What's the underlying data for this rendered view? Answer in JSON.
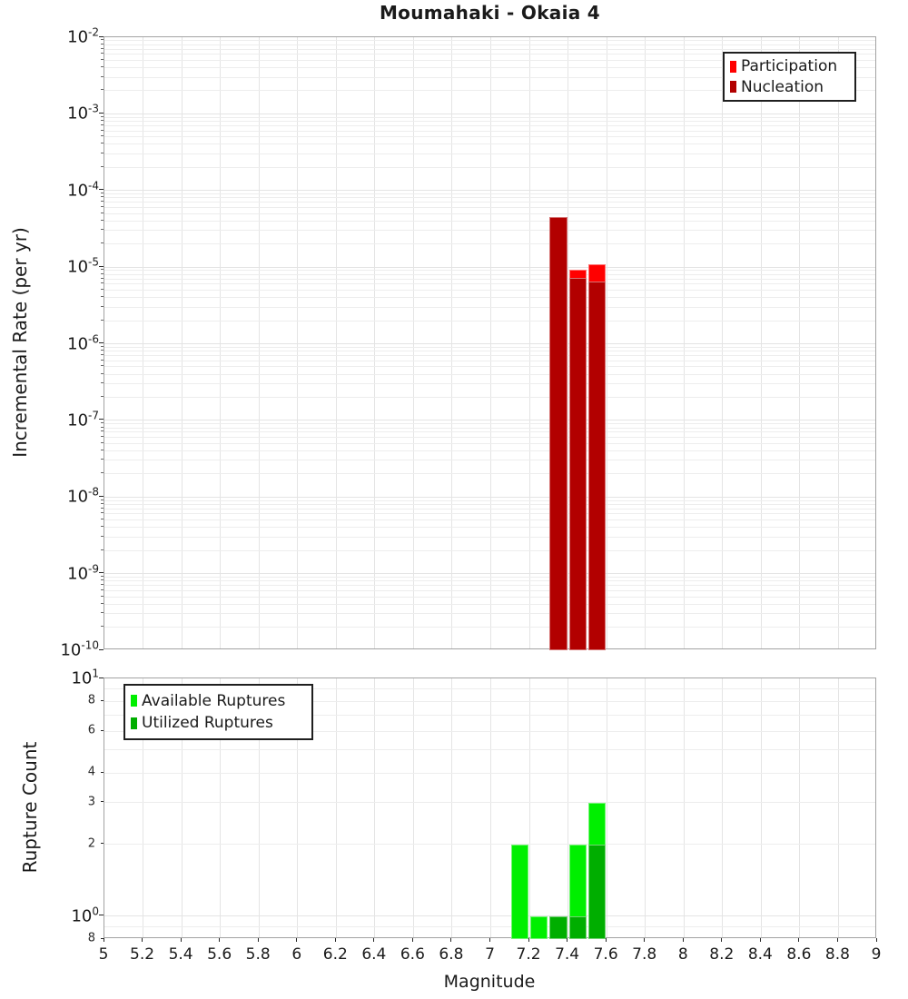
{
  "title": "Moumahaki - Okaia 4",
  "axes": {
    "xlabel": "Magnitude",
    "ylabel_top": "Incremental Rate (per yr)",
    "ylabel_bottom": "Rupture Count"
  },
  "colors": {
    "participation": "#ff0000",
    "nucleation": "#b20000",
    "available": "#00ef00",
    "utilized": "#00ae00",
    "grid_major": "#e4e4e4",
    "grid_minor": "#ededed",
    "spine": "#a3a3a3",
    "tick": "#262626"
  },
  "legend_top": {
    "items": [
      {
        "label": "Participation",
        "color": "#ff0000"
      },
      {
        "label": "Nucleation",
        "color": "#b20000"
      }
    ]
  },
  "legend_bottom": {
    "items": [
      {
        "label": "Available Ruptures",
        "color": "#00ef00"
      },
      {
        "label": "Utilized Ruptures",
        "color": "#00ae00"
      }
    ]
  },
  "x_ticks": [
    {
      "value": 5.0,
      "label": "5"
    },
    {
      "value": 5.2,
      "label": "5.2"
    },
    {
      "value": 5.4,
      "label": "5.4"
    },
    {
      "value": 5.6,
      "label": "5.6"
    },
    {
      "value": 5.8,
      "label": "5.8"
    },
    {
      "value": 6.0,
      "label": "6"
    },
    {
      "value": 6.2,
      "label": "6.2"
    },
    {
      "value": 6.4,
      "label": "6.4"
    },
    {
      "value": 6.6,
      "label": "6.6"
    },
    {
      "value": 6.8,
      "label": "6.8"
    },
    {
      "value": 7.0,
      "label": "7"
    },
    {
      "value": 7.2,
      "label": "7.2"
    },
    {
      "value": 7.4,
      "label": "7.4"
    },
    {
      "value": 7.6,
      "label": "7.6"
    },
    {
      "value": 7.8,
      "label": "7.8"
    },
    {
      "value": 8.0,
      "label": "8"
    },
    {
      "value": 8.2,
      "label": "8.2"
    },
    {
      "value": 8.4,
      "label": "8.4"
    },
    {
      "value": 8.6,
      "label": "8.6"
    },
    {
      "value": 8.8,
      "label": "8.8"
    },
    {
      "value": 9.0,
      "label": "9"
    }
  ],
  "y_ticks_top": [
    {
      "exp": "-2"
    },
    {
      "exp": "-3"
    },
    {
      "exp": "-4"
    },
    {
      "exp": "-5"
    },
    {
      "exp": "-6"
    },
    {
      "exp": "-7"
    },
    {
      "exp": "-8"
    },
    {
      "exp": "-9"
    },
    {
      "exp": "-10"
    }
  ],
  "y_ticks_bottom": {
    "major": [
      {
        "exp": "1",
        "value": 10
      },
      {
        "exp": "0",
        "value": 1
      }
    ],
    "minor": [
      {
        "label": "8",
        "value": 8
      },
      {
        "label": "6",
        "value": 6
      },
      {
        "label": "4",
        "value": 4
      },
      {
        "label": "3",
        "value": 3
      },
      {
        "label": "2",
        "value": 2
      },
      {
        "label": "8",
        "value": 0.8
      }
    ]
  },
  "chart_data": [
    {
      "type": "bar",
      "panel": "top",
      "title": "Moumahaki - Okaia 4",
      "xlabel": "Magnitude",
      "ylabel": "Incremental Rate (per yr)",
      "xlim": [
        5,
        9
      ],
      "ylim": [
        1e-10,
        0.01
      ],
      "yscale": "log",
      "grid": true,
      "legend_position": "upper right",
      "bin_width": 0.1,
      "bar_width": 0.09,
      "categories": [
        7.35,
        7.45,
        7.55
      ],
      "series": [
        {
          "name": "Participation",
          "color": "#ff0000",
          "values": [
            4.5e-05,
            9.3e-06,
            1.1e-05
          ]
        },
        {
          "name": "Nucleation",
          "color": "#b20000",
          "values": [
            4.5e-05,
            7.3e-06,
            6.4e-06
          ]
        }
      ]
    },
    {
      "type": "bar",
      "panel": "bottom",
      "xlabel": "Magnitude",
      "ylabel": "Rupture Count",
      "xlim": [
        5,
        9
      ],
      "ylim": [
        0.8,
        10
      ],
      "yscale": "log",
      "grid": true,
      "legend_position": "upper left",
      "bin_width": 0.1,
      "bar_width": 0.09,
      "categories": [
        7.15,
        7.25,
        7.35,
        7.45,
        7.55
      ],
      "series": [
        {
          "name": "Available Ruptures",
          "color": "#00ef00",
          "values": [
            2,
            1,
            1,
            2,
            3
          ]
        },
        {
          "name": "Utilized Ruptures",
          "color": "#00ae00",
          "values": [
            0,
            0,
            1,
            1,
            2
          ]
        }
      ]
    }
  ]
}
